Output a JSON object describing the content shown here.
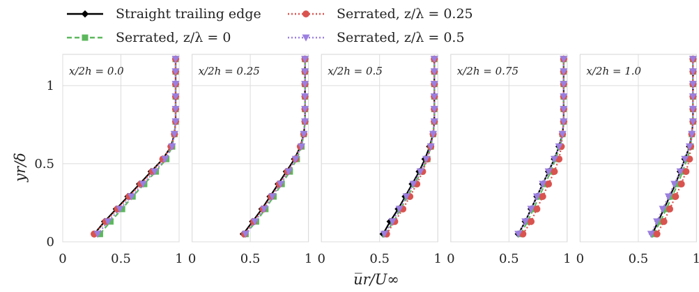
{
  "chart_data": {
    "type": "line",
    "xlabel": "u̅r/U∞",
    "ylabel": "yr/δ",
    "xlim": [
      0,
      1
    ],
    "ylim": [
      0,
      1.2
    ],
    "xticks": [
      "0",
      "0.5",
      "1"
    ],
    "yticks": [
      "0",
      "0.5",
      "1"
    ],
    "grid": true,
    "legend_position": "top",
    "series_styles": [
      {
        "name": "Straight trailing edge",
        "color": "#000000",
        "marker": "diamond",
        "dash": "solid"
      },
      {
        "name": "Serrated, z/λ = 0",
        "color": "#5cb85c",
        "marker": "square",
        "dash": "dashed"
      },
      {
        "name": "Serrated, z/λ = 0.25",
        "color": "#d9534f",
        "marker": "circle",
        "dash": "dotted"
      },
      {
        "name": "Serrated, z/λ = 0.5",
        "color": "#9b7fe0",
        "marker": "triangle-down",
        "dash": "dotted"
      }
    ],
    "panels": [
      {
        "title": "x/2h = 0.0",
        "y": [
          0.05,
          0.13,
          0.21,
          0.29,
          0.37,
          0.45,
          0.53,
          0.61,
          0.69,
          0.77,
          0.85,
          0.93,
          1.01,
          1.09,
          1.17
        ],
        "series": [
          {
            "name": "Straight trailing edge",
            "values": [
              0.27,
              0.36,
              0.46,
              0.56,
              0.66,
              0.76,
              0.86,
              0.93,
              0.96,
              0.97,
              0.97,
              0.97,
              0.97,
              0.97,
              0.97
            ]
          },
          {
            "name": "Serrated, z/λ = 0",
            "values": [
              0.32,
              0.41,
              0.51,
              0.6,
              0.7,
              0.8,
              0.89,
              0.94,
              0.96,
              0.97,
              0.97,
              0.97,
              0.97,
              0.97,
              0.97
            ]
          },
          {
            "name": "Serrated, z/λ = 0.25",
            "values": [
              0.27,
              0.37,
              0.47,
              0.57,
              0.67,
              0.77,
              0.86,
              0.93,
              0.96,
              0.97,
              0.97,
              0.97,
              0.97,
              0.97,
              0.97
            ]
          },
          {
            "name": "Serrated, z/λ = 0.5",
            "values": [
              0.3,
              0.39,
              0.49,
              0.59,
              0.69,
              0.79,
              0.88,
              0.94,
              0.96,
              0.97,
              0.97,
              0.97,
              0.97,
              0.97,
              0.97
            ]
          }
        ]
      },
      {
        "title": "x/2h = 0.25",
        "y": [
          0.05,
          0.13,
          0.21,
          0.29,
          0.37,
          0.45,
          0.53,
          0.61,
          0.69,
          0.77,
          0.85,
          0.93,
          1.01,
          1.09,
          1.17
        ],
        "series": [
          {
            "name": "Straight trailing edge",
            "values": [
              0.44,
              0.52,
              0.6,
              0.67,
              0.74,
              0.81,
              0.88,
              0.93,
              0.96,
              0.97,
              0.97,
              0.97,
              0.97,
              0.97,
              0.97
            ]
          },
          {
            "name": "Serrated, z/λ = 0",
            "values": [
              0.46,
              0.55,
              0.63,
              0.7,
              0.77,
              0.84,
              0.9,
              0.94,
              0.96,
              0.97,
              0.97,
              0.97,
              0.97,
              0.97,
              0.97
            ]
          },
          {
            "name": "Serrated, z/λ = 0.25",
            "values": [
              0.45,
              0.53,
              0.61,
              0.68,
              0.75,
              0.82,
              0.89,
              0.93,
              0.96,
              0.97,
              0.97,
              0.97,
              0.97,
              0.97,
              0.97
            ]
          },
          {
            "name": "Serrated, z/λ = 0.5",
            "values": [
              0.46,
              0.54,
              0.62,
              0.69,
              0.76,
              0.83,
              0.89,
              0.94,
              0.96,
              0.97,
              0.97,
              0.97,
              0.97,
              0.97,
              0.97
            ]
          }
        ]
      },
      {
        "title": "x/2h = 0.5",
        "y": [
          0.05,
          0.13,
          0.21,
          0.29,
          0.37,
          0.45,
          0.53,
          0.61,
          0.69,
          0.77,
          0.85,
          0.93,
          1.01,
          1.09,
          1.17
        ],
        "series": [
          {
            "name": "Straight trailing edge",
            "values": [
              0.53,
              0.59,
              0.66,
              0.72,
              0.78,
              0.84,
              0.89,
              0.93,
              0.96,
              0.97,
              0.97,
              0.97,
              0.97,
              0.97,
              0.97
            ]
          },
          {
            "name": "Serrated, z/λ = 0",
            "values": [
              0.55,
              0.62,
              0.68,
              0.74,
              0.8,
              0.86,
              0.91,
              0.94,
              0.96,
              0.97,
              0.97,
              0.97,
              0.97,
              0.97,
              0.97
            ]
          },
          {
            "name": "Serrated, z/λ = 0.25",
            "values": [
              0.56,
              0.63,
              0.7,
              0.76,
              0.82,
              0.87,
              0.91,
              0.94,
              0.96,
              0.97,
              0.97,
              0.97,
              0.97,
              0.97,
              0.97
            ]
          },
          {
            "name": "Serrated, z/λ = 0.5",
            "values": [
              0.54,
              0.61,
              0.67,
              0.73,
              0.79,
              0.85,
              0.9,
              0.94,
              0.96,
              0.97,
              0.97,
              0.97,
              0.97,
              0.97,
              0.97
            ]
          }
        ]
      },
      {
        "title": "x/2h = 0.75",
        "y": [
          0.05,
          0.13,
          0.21,
          0.29,
          0.37,
          0.45,
          0.53,
          0.61,
          0.69,
          0.77,
          0.85,
          0.93,
          1.01,
          1.09,
          1.17
        ],
        "series": [
          {
            "name": "Straight trailing edge",
            "values": [
              0.58,
              0.64,
              0.69,
              0.74,
              0.79,
              0.84,
              0.89,
              0.93,
              0.96,
              0.97,
              0.97,
              0.97,
              0.97,
              0.97,
              0.97
            ]
          },
          {
            "name": "Serrated, z/λ = 0",
            "values": [
              0.6,
              0.66,
              0.71,
              0.76,
              0.81,
              0.86,
              0.9,
              0.94,
              0.96,
              0.97,
              0.97,
              0.97,
              0.97,
              0.97,
              0.97
            ]
          },
          {
            "name": "Serrated, z/λ = 0.25",
            "values": [
              0.62,
              0.69,
              0.74,
              0.79,
              0.84,
              0.89,
              0.93,
              0.95,
              0.96,
              0.97,
              0.97,
              0.97,
              0.97,
              0.97,
              0.97
            ]
          },
          {
            "name": "Serrated, z/λ = 0.5",
            "values": [
              0.58,
              0.64,
              0.69,
              0.74,
              0.79,
              0.84,
              0.89,
              0.93,
              0.96,
              0.97,
              0.97,
              0.97,
              0.97,
              0.97,
              0.97
            ]
          }
        ]
      },
      {
        "title": "x/2h = 1.0",
        "y": [
          0.05,
          0.13,
          0.21,
          0.29,
          0.37,
          0.45,
          0.53,
          0.61,
          0.69,
          0.77,
          0.85,
          0.93,
          1.01,
          1.09,
          1.17
        ],
        "series": [
          {
            "name": "Straight trailing edge",
            "values": [
              0.62,
              0.67,
              0.72,
              0.77,
              0.82,
              0.86,
              0.9,
              0.94,
              0.96,
              0.97,
              0.97,
              0.97,
              0.97,
              0.97,
              0.97
            ]
          },
          {
            "name": "Serrated, z/λ = 0",
            "values": [
              0.63,
              0.69,
              0.74,
              0.79,
              0.84,
              0.88,
              0.92,
              0.95,
              0.96,
              0.97,
              0.97,
              0.97,
              0.97,
              0.97,
              0.97
            ]
          },
          {
            "name": "Serrated, z/λ = 0.25",
            "values": [
              0.66,
              0.72,
              0.77,
              0.82,
              0.87,
              0.91,
              0.94,
              0.95,
              0.96,
              0.97,
              0.97,
              0.97,
              0.97,
              0.97,
              0.97
            ]
          },
          {
            "name": "Serrated, z/λ = 0.5",
            "values": [
              0.61,
              0.66,
              0.71,
              0.76,
              0.81,
              0.86,
              0.9,
              0.94,
              0.96,
              0.97,
              0.97,
              0.97,
              0.97,
              0.97,
              0.97
            ]
          }
        ]
      }
    ]
  }
}
